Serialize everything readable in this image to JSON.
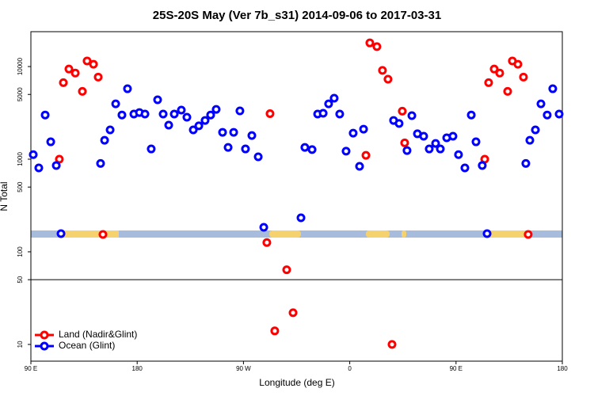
{
  "chart_data": {
    "type": "scatter",
    "title": "25S-20S May (Ver 7b_s31)   2014-09-06 to 2017-03-31",
    "xlabel": "Longitude (deg E)",
    "ylabel": "N Total",
    "xlim": [
      90,
      540
    ],
    "xticks": [
      {
        "value": 90,
        "label": "90 E"
      },
      180,
      {
        "value": 270,
        "label": "90 W"
      },
      {
        "value": 360,
        "label": "0"
      },
      {
        "value": 450,
        "label": "90 E"
      },
      {
        "value": 540,
        "label": "180"
      }
    ],
    "ylim": [
      6.6,
      23800
    ],
    "yscale": "log",
    "yticks": [
      10,
      50,
      100,
      500,
      1000,
      5000,
      10000
    ],
    "hline": 50,
    "legend": "lower left",
    "series": [
      {
        "name": "Land (Nadir&Glint)",
        "color": "#ff0000",
        "x": [
          114.1,
          117.5,
          122.2,
          127.6,
          133.6,
          137.6,
          143,
          147,
          151,
          289.8,
          292.5,
          296.5,
          306.6,
          312,
          373.7,
          377,
          383,
          387.7,
          392.4,
          395.8,
          404.5,
          406.5,
          474.3,
          477.6,
          482.3,
          487,
          493.7,
          497.7,
          502.4,
          507.1,
          511.1
        ],
        "values": [
          1000,
          6700,
          9400,
          8500,
          5400,
          11500,
          10600,
          7700,
          154,
          126,
          3100,
          14,
          64,
          22,
          1100,
          18000,
          16400,
          9100,
          7300,
          10,
          3300,
          1500,
          1000,
          6700,
          9400,
          8500,
          5400,
          11500,
          10600,
          7700,
          154
        ]
      },
      {
        "name": "Ocean (Glint)",
        "color": "#0000ff",
        "x": [
          92,
          96.7,
          102.1,
          106.8,
          111.5,
          115.5,
          149,
          152.4,
          157.1,
          161.8,
          167.1,
          171.8,
          177.2,
          181.9,
          186.6,
          191.9,
          197.3,
          202,
          206.7,
          211.4,
          217.4,
          222.1,
          227.5,
          232.2,
          237.5,
          242.2,
          246.9,
          252.3,
          257,
          261.7,
          267,
          271.7,
          277.1,
          282.5,
          287.2,
          318.7,
          322,
          328.1,
          332.8,
          337.5,
          342.1,
          346.8,
          351.5,
          356.9,
          362.9,
          368.3,
          371.7,
          397.1,
          401.8,
          408.5,
          412.6,
          417.3,
          422.6,
          427.3,
          432.7,
          436.7,
          442.1,
          447.4,
          452.1,
          457.5,
          462.9,
          466.9,
          472.2,
          476.3,
          509.1,
          512.5,
          517.2,
          521.9,
          527.2,
          531.9,
          537.3
        ],
        "values": [
          1120,
          805,
          3000,
          1540,
          855,
          157,
          900,
          1600,
          2070,
          3960,
          3000,
          5760,
          3070,
          3190,
          3070,
          1290,
          4380,
          3070,
          2330,
          3070,
          3390,
          2840,
          2070,
          2290,
          2620,
          3000,
          3450,
          1950,
          1340,
          1950,
          3320,
          1290,
          1800,
          1060,
          184,
          233,
          1340,
          1270,
          3070,
          3130,
          3960,
          4550,
          3070,
          1220,
          1910,
          838,
          2110,
          2620,
          2430,
          1240,
          2950,
          1880,
          1770,
          1290,
          1480,
          1290,
          1700,
          1770,
          1120,
          805,
          3000,
          1540,
          855,
          157,
          900,
          1600,
          2070,
          3960,
          3000,
          5760,
          3070
        ]
      }
    ]
  }
}
